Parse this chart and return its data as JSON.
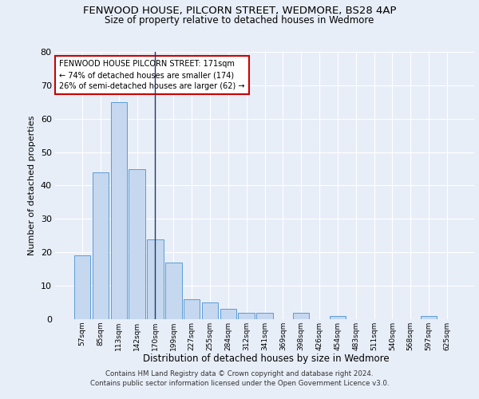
{
  "title1": "FENWOOD HOUSE, PILCORN STREET, WEDMORE, BS28 4AP",
  "title2": "Size of property relative to detached houses in Wedmore",
  "xlabel": "Distribution of detached houses by size in Wedmore",
  "ylabel": "Number of detached properties",
  "categories": [
    "57sqm",
    "85sqm",
    "113sqm",
    "142sqm",
    "170sqm",
    "199sqm",
    "227sqm",
    "255sqm",
    "284sqm",
    "312sqm",
    "341sqm",
    "369sqm",
    "398sqm",
    "426sqm",
    "454sqm",
    "483sqm",
    "511sqm",
    "540sqm",
    "568sqm",
    "597sqm",
    "625sqm"
  ],
  "values": [
    19,
    44,
    65,
    45,
    24,
    17,
    6,
    5,
    3,
    2,
    2,
    0,
    2,
    0,
    1,
    0,
    0,
    0,
    0,
    1,
    0
  ],
  "bar_color": "#c5d8f0",
  "bar_edge_color": "#5b9bd5",
  "highlight_bar_index": 4,
  "highlight_line_color": "#1a3a6b",
  "ylim": [
    0,
    80
  ],
  "yticks": [
    0,
    10,
    20,
    30,
    40,
    50,
    60,
    70,
    80
  ],
  "annotation_line1": "FENWOOD HOUSE PILCORN STREET: 171sqm",
  "annotation_line2": "← 74% of detached houses are smaller (174)",
  "annotation_line3": "26% of semi-detached houses are larger (62) →",
  "annotation_box_color": "#ffffff",
  "annotation_border_color": "#cc0000",
  "footer1": "Contains HM Land Registry data © Crown copyright and database right 2024.",
  "footer2": "Contains public sector information licensed under the Open Government Licence v3.0.",
  "bg_color": "#e8eef8",
  "plot_bg_color": "#e8eef8",
  "grid_color": "#ffffff"
}
